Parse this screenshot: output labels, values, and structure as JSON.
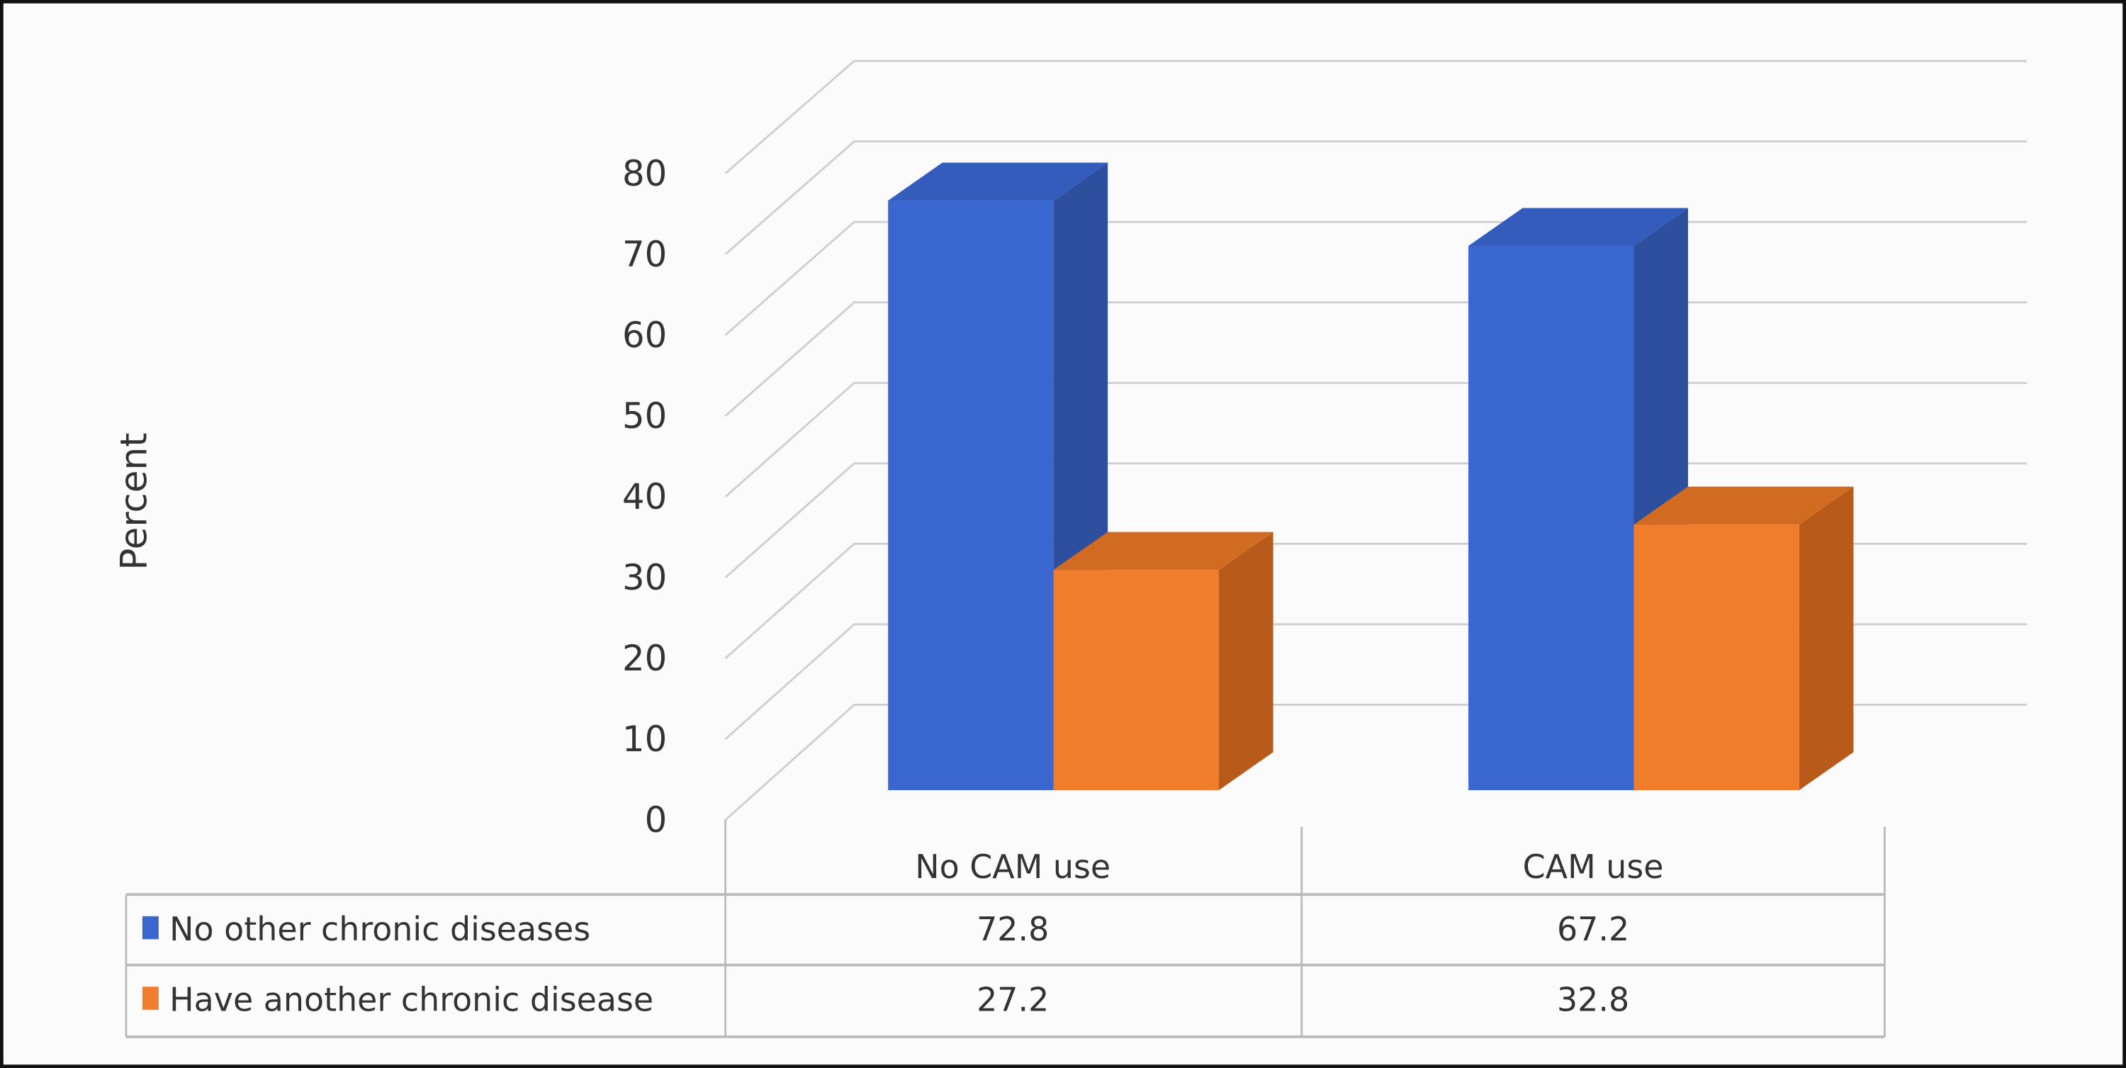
{
  "chart_data": {
    "type": "bar",
    "subtype": "3d-clustered-column-with-data-table",
    "title": "",
    "xlabel": "",
    "ylabel": "Percent",
    "ylim": [
      0,
      80
    ],
    "yticks": [
      "0",
      "10",
      "20",
      "30",
      "40",
      "50",
      "60",
      "70",
      "80"
    ],
    "grid": true,
    "legend_placement": "data-table",
    "categories": [
      "No CAM use",
      "CAM use"
    ],
    "series": [
      {
        "name": "No other chronic diseases",
        "values": [
          72.8,
          67.2
        ],
        "labels": [
          "72.8",
          "67.2"
        ],
        "color": "#3a66d0"
      },
      {
        "name": "Have another chronic disease",
        "values": [
          27.2,
          32.8
        ],
        "labels": [
          "27.2",
          "32.8"
        ],
        "color": "#ef7d2c"
      }
    ]
  }
}
